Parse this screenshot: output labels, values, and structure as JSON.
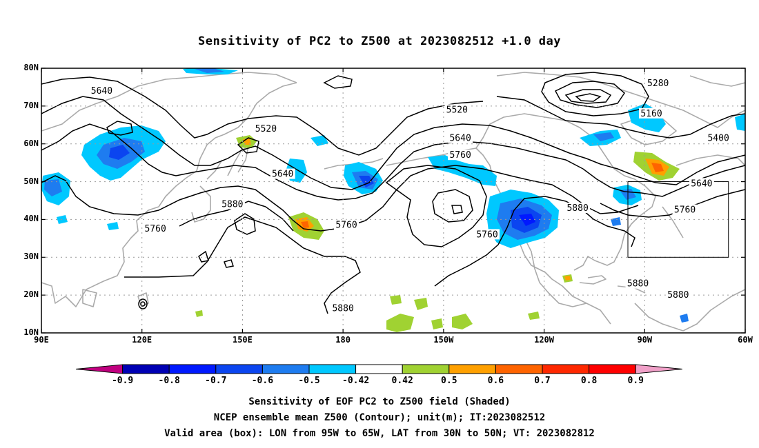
{
  "title": "Sensitivity of PC2 to Z500 at 2023082512 +1.0 day",
  "map": {
    "lon_range_deg_east": [
      90,
      300
    ],
    "lat_range_deg": [
      10,
      80
    ],
    "grid": true,
    "lat_labels": [
      "80N",
      "70N",
      "60N",
      "50N",
      "40N",
      "30N",
      "20N",
      "10N"
    ],
    "lon_labels": [
      "90E",
      "120E",
      "150E",
      "180",
      "150W",
      "120W",
      "90W",
      "60W"
    ],
    "contour_labels": [
      {
        "text": "5640",
        "lon": 108,
        "lat": 74
      },
      {
        "text": "5520",
        "lon": 157,
        "lat": 64
      },
      {
        "text": "5640",
        "lon": 162,
        "lat": 52
      },
      {
        "text": "5880",
        "lon": 147,
        "lat": 44
      },
      {
        "text": "5760",
        "lon": 124,
        "lat": 37.5
      },
      {
        "text": "5760",
        "lon": 181,
        "lat": 38.5
      },
      {
        "text": "5520",
        "lon": 214,
        "lat": 69
      },
      {
        "text": "5640",
        "lon": 215,
        "lat": 61.5
      },
      {
        "text": "5760",
        "lon": 215,
        "lat": 57
      },
      {
        "text": "5760",
        "lon": 223,
        "lat": 36
      },
      {
        "text": "5880",
        "lon": 180,
        "lat": 16.5
      },
      {
        "text": "5880",
        "lon": 250,
        "lat": 43
      },
      {
        "text": "5280",
        "lon": 274,
        "lat": 76
      },
      {
        "text": "5160",
        "lon": 272,
        "lat": 68
      },
      {
        "text": "5400",
        "lon": 292,
        "lat": 61.5
      },
      {
        "text": "5640",
        "lon": 287,
        "lat": 49.5
      },
      {
        "text": "5760",
        "lon": 282,
        "lat": 42.5
      },
      {
        "text": "5880",
        "lon": 268,
        "lat": 23
      },
      {
        "text": "5880",
        "lon": 280,
        "lat": 20
      }
    ],
    "valid_box": {
      "lon_w": 265,
      "lon_e": 295,
      "lat_s": 30,
      "lat_n": 50
    }
  },
  "colorbar": {
    "labels": [
      "-0.9",
      "-0.8",
      "-0.7",
      "-0.6",
      "-0.5",
      "-0.42",
      "0.42",
      "0.5",
      "0.6",
      "0.7",
      "0.8",
      "0.9"
    ],
    "colors": [
      "#c0007f",
      "#0000b4",
      "#0019ff",
      "#0b45f0",
      "#1e7cf0",
      "#00c8ff",
      "#ffffff",
      "#a0d232",
      "#ffa000",
      "#ff6400",
      "#ff2800",
      "#ff0000",
      "#f0a0c8"
    ]
  },
  "footer": {
    "line1": "Sensitivity of EOF PC2 to Z500 field (Shaded)",
    "line2": "NCEP ensemble mean Z500 (Contour); unit(m); IT:2023082512",
    "line3": "Valid area (box): LON from 95W to 65W, LAT from 30N to 50N; VT: 2023082812"
  }
}
